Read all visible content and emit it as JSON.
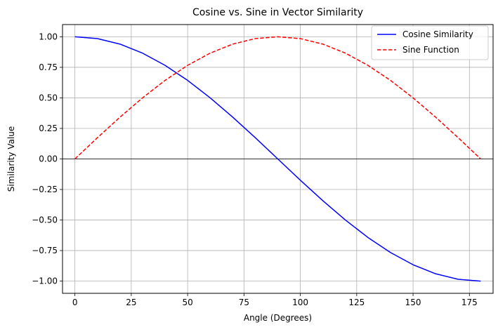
{
  "chart_data": {
    "type": "line",
    "title": "Cosine vs. Sine in Vector Similarity",
    "xlabel": "Angle (Degrees)",
    "ylabel": "Similarity Value",
    "xlim": [
      -5.5,
      185.5
    ],
    "ylim": [
      -1.1,
      1.1
    ],
    "xticks": [
      0,
      25,
      50,
      75,
      100,
      125,
      150,
      175
    ],
    "xtick_labels": [
      "0",
      "25",
      "50",
      "75",
      "100",
      "125",
      "150",
      "175"
    ],
    "yticks": [
      1.0,
      0.75,
      0.5,
      0.25,
      0.0,
      -0.25,
      -0.5,
      -0.75,
      -1.0
    ],
    "ytick_labels": [
      "1.00",
      "0.75",
      "0.50",
      "0.25",
      "0.00",
      "−0.25",
      "−0.50",
      "−0.75",
      "−1.00"
    ],
    "grid": true,
    "legend_position": "top-right",
    "x": [
      0,
      10,
      20,
      30,
      40,
      50,
      60,
      70,
      80,
      90,
      100,
      110,
      120,
      130,
      140,
      150,
      160,
      170,
      180
    ],
    "series": [
      {
        "name": "Cosine Similarity",
        "color": "#0000ff",
        "style": "solid",
        "values": [
          1.0,
          0.985,
          0.94,
          0.866,
          0.766,
          0.643,
          0.5,
          0.342,
          0.174,
          0.0,
          -0.174,
          -0.342,
          -0.5,
          -0.643,
          -0.766,
          -0.866,
          -0.94,
          -0.985,
          -1.0
        ]
      },
      {
        "name": "Sine Function",
        "color": "#ff0000",
        "style": "dashed",
        "values": [
          0.0,
          0.174,
          0.342,
          0.5,
          0.643,
          0.766,
          0.866,
          0.94,
          0.985,
          1.0,
          0.985,
          0.94,
          0.866,
          0.766,
          0.643,
          0.5,
          0.342,
          0.174,
          0.0
        ]
      }
    ]
  }
}
